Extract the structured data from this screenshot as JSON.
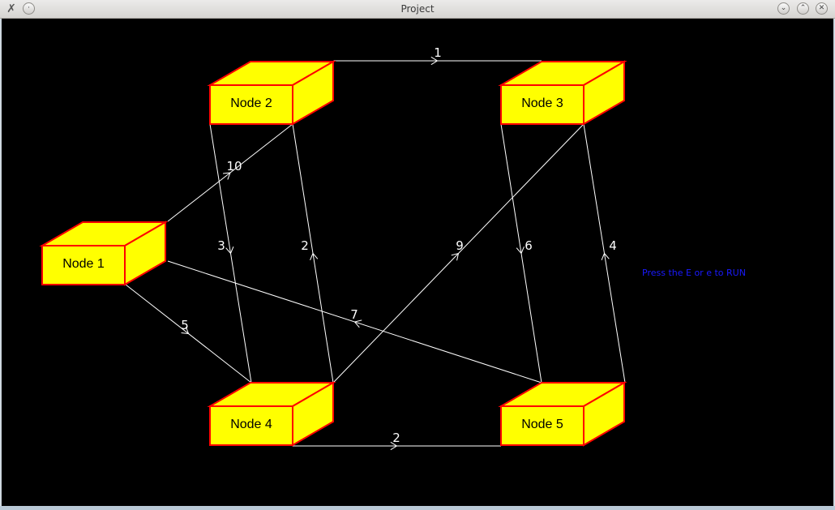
{
  "window": {
    "title": "Project",
    "controls": [
      "minimize-icon",
      "maximize-icon",
      "close-icon"
    ]
  },
  "graph": {
    "nodes": [
      {
        "id": 1,
        "label": "Node 1"
      },
      {
        "id": 2,
        "label": "Node 2"
      },
      {
        "id": 3,
        "label": "Node 3"
      },
      {
        "id": 4,
        "label": "Node 4"
      },
      {
        "id": 5,
        "label": "Node 5"
      }
    ],
    "edges": [
      {
        "from": 2,
        "to": 3,
        "weight": "1"
      },
      {
        "from": 1,
        "to": 2,
        "weight": "10"
      },
      {
        "from": 2,
        "to": 4,
        "weight": "3"
      },
      {
        "from": 4,
        "to": 2,
        "weight": "2"
      },
      {
        "from": 4,
        "to": 3,
        "weight": "9"
      },
      {
        "from": 3,
        "to": 5,
        "weight": "6"
      },
      {
        "from": 5,
        "to": 3,
        "weight": "4"
      },
      {
        "from": 1,
        "to": 4,
        "weight": "5"
      },
      {
        "from": 5,
        "to": 1,
        "weight": "7"
      },
      {
        "from": 4,
        "to": 5,
        "weight": "2"
      }
    ],
    "colors": {
      "box_face": "#ffff00",
      "box_edge": "#ff0000",
      "edge_line": "#ffffff",
      "background": "#000000"
    }
  },
  "hint": "Press the E or e to RUN"
}
